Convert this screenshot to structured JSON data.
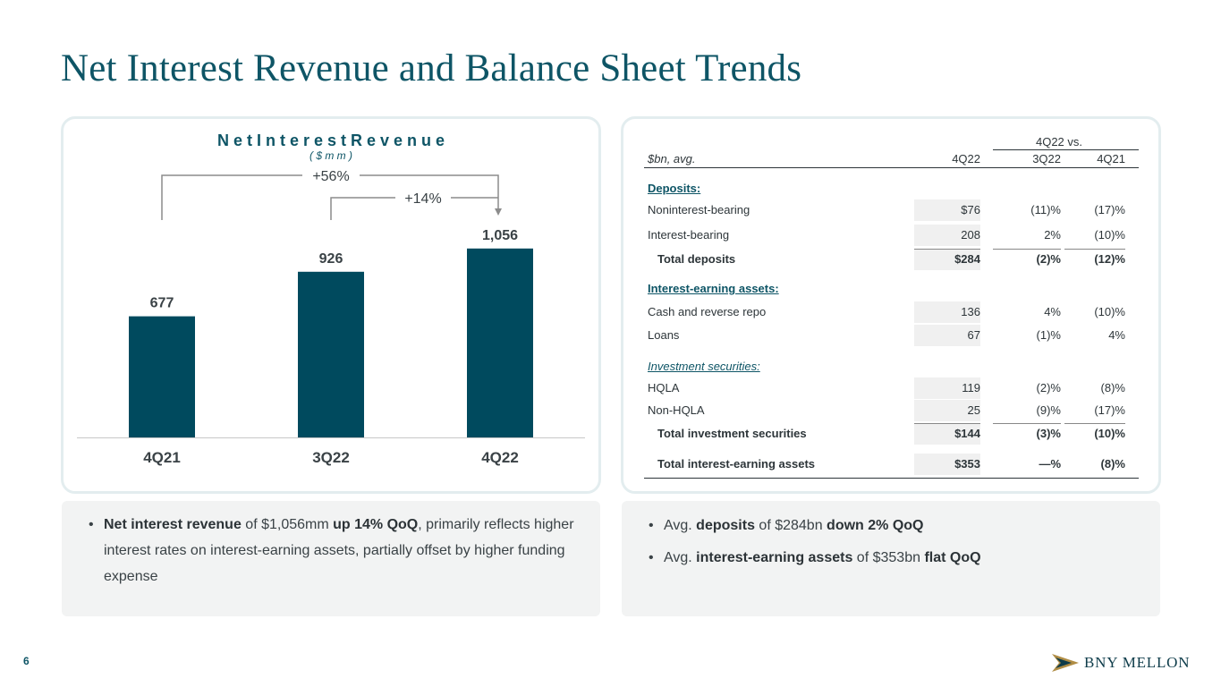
{
  "title": "Net Interest Revenue and Balance Sheet Trends",
  "chart_data": {
    "type": "bar",
    "title": "N e t   I n t e r e s t   R e v e n u e",
    "subtitle": "( $ m m )",
    "categories": [
      "4Q21",
      "3Q22",
      "4Q22"
    ],
    "values": [
      677,
      926,
      1056
    ],
    "data_labels": [
      "677",
      "926",
      "1,056"
    ],
    "ylim": [
      0,
      1300
    ],
    "color": "#004a5e",
    "annotations": [
      {
        "label": "+56%",
        "from": "4Q21",
        "to": "4Q22"
      },
      {
        "label": "+14%",
        "from": "3Q22",
        "to": "4Q22"
      }
    ]
  },
  "table": {
    "group_header": "4Q22 vs.",
    "unit_label": "$bn, avg.",
    "columns": [
      "4Q22",
      "3Q22",
      "4Q21"
    ],
    "rows": [
      {
        "label": "Deposits:",
        "kind": "section"
      },
      {
        "label": "Noninterest-bearing",
        "v1": "$76",
        "v2": "(11)%",
        "v3": "(17)%"
      },
      {
        "label": "Interest-bearing",
        "v1": "208",
        "v2": "2%",
        "v3": "(10)%"
      },
      {
        "label": "Total deposits",
        "v1": "$284",
        "v2": "(2)%",
        "v3": "(12)%",
        "kind": "total"
      },
      {
        "label": "Interest-earning assets:",
        "kind": "section"
      },
      {
        "label": "Cash and reverse repo",
        "v1": "136",
        "v2": "4%",
        "v3": "(10)%"
      },
      {
        "label": "Loans",
        "v1": "67",
        "v2": "(1)%",
        "v3": "4%"
      },
      {
        "label": "Investment securities:",
        "kind": "subsection"
      },
      {
        "label": "HQLA",
        "v1": "119",
        "v2": "(2)%",
        "v3": "(8)%"
      },
      {
        "label": "Non-HQLA",
        "v1": "25",
        "v2": "(9)%",
        "v3": "(17)%"
      },
      {
        "label": "Total investment securities",
        "v1": "$144",
        "v2": "(3)%",
        "v3": "(10)%",
        "kind": "total"
      },
      {
        "label": "Total interest-earning assets",
        "v1": "$353",
        "v2": "—%",
        "v3": "(8)%",
        "kind": "grand"
      }
    ]
  },
  "notes_left": {
    "b1_a": "Net interest revenue",
    "b1_b": " of $1,056mm ",
    "b1_c": "up 14% QoQ",
    "b1_d": ", primarily reflects higher interest rates on interest-earning assets, partially offset by higher funding expense"
  },
  "notes_right": {
    "b1_a": "Avg. ",
    "b1_b": "deposits",
    "b1_c": " of $284bn ",
    "b1_d": "down 2% QoQ",
    "b2_a": "Avg. ",
    "b2_b": "interest-earning assets",
    "b2_c": " of $353bn ",
    "b2_d": "flat QoQ"
  },
  "page_number": "6",
  "brand": "BNY MELLON"
}
